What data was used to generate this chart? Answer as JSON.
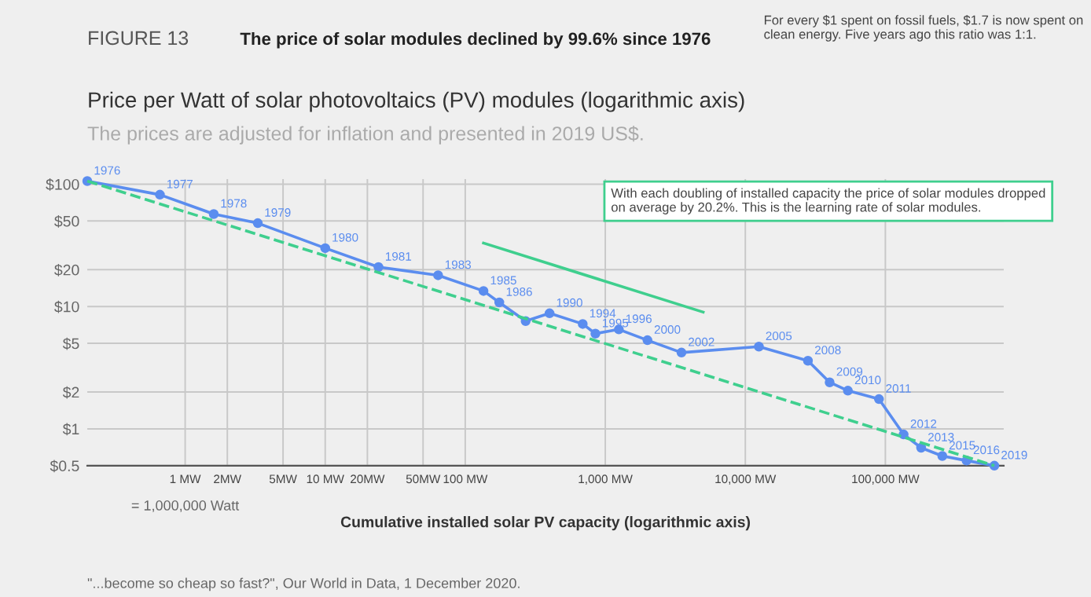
{
  "chart_data": {
    "type": "line",
    "title": "Price per Watt of solar photovoltaics (PV) modules (logarithmic axis)",
    "subtitle": "The prices are adjusted for inflation and presented in 2019 US$.",
    "xlabel": "Cumulative installed solar PV capacity (logarithmic axis)",
    "annotations": [
      "FIGURE 13",
      "The price of solar modules declined by 99.6% since 1976",
      "For every $1 spent on fossil fuels, $1.7 is now spent on clean energy. Five years ago this ratio was 1:1.",
      "With each doubling of installed capacity the price of solar modules dropped on average by 20.2%. This is the learning rate of solar modules.",
      "= 1,000,000 Watt",
      "\"...become so cheap so fast?\", Our World in Data, 1 December 2020.",
      {
        "text": "1976",
        "x": 0.2,
        "y": 106
      },
      {
        "text": "1977",
        "x": 0.66,
        "y": 82
      },
      {
        "text": "1978",
        "x": 1.6,
        "y": 57
      },
      {
        "text": "1979",
        "x": 3.3,
        "y": 48
      },
      {
        "text": "1980",
        "x": 10,
        "y": 30
      },
      {
        "text": "1981",
        "x": 24,
        "y": 21
      },
      {
        "text": "1983",
        "x": 64,
        "y": 18
      },
      {
        "text": "1985",
        "x": 135,
        "y": 13.4
      },
      {
        "text": "1986",
        "x": 175,
        "y": 10.8
      },
      {
        "text": "1990",
        "x": 400,
        "y": 8.8
      },
      {
        "text": "1994",
        "x": 690,
        "y": 7.2
      },
      {
        "text": "1995",
        "x": 850,
        "y": 6
      },
      {
        "text": "1996",
        "x": 1250,
        "y": 6.5
      },
      {
        "text": "2000",
        "x": 2000,
        "y": 5.3
      },
      {
        "text": "2002",
        "x": 3500,
        "y": 4.2
      },
      {
        "text": "2005",
        "x": 12500,
        "y": 4.7
      },
      {
        "text": "2008",
        "x": 28000,
        "y": 3.6
      },
      {
        "text": "2009",
        "x": 40000,
        "y": 2.4
      },
      {
        "text": "2010",
        "x": 54000,
        "y": 2.05
      },
      {
        "text": "2011",
        "x": 90000,
        "y": 1.75
      },
      {
        "text": "2012",
        "x": 135000,
        "y": 0.9
      },
      {
        "text": "2013",
        "x": 180000,
        "y": 0.7
      },
      {
        "text": "2015",
        "x": 255000,
        "y": 0.6
      },
      {
        "text": "2016",
        "x": 380000,
        "y": 0.55
      },
      {
        "text": "2019",
        "x": 600000,
        "y": 0.5
      }
    ],
    "log": "xy",
    "xlim": [
      0.2,
      700000
    ],
    "ylim": [
      0.5,
      110
    ],
    "xticks": [
      {
        "value": 1,
        "label": "1 MW"
      },
      {
        "value": 2,
        "label": "2MW"
      },
      {
        "value": 5,
        "label": "5MW"
      },
      {
        "value": 10,
        "label": "10 MW"
      },
      {
        "value": 20,
        "label": "20MW"
      },
      {
        "value": 50,
        "label": "50MW"
      },
      {
        "value": 100,
        "label": "100 MW"
      },
      {
        "value": 1000,
        "label": "1,000 MW"
      },
      {
        "value": 10000,
        "label": "10,000 MW"
      },
      {
        "value": 100000,
        "label": "100,000 MW"
      }
    ],
    "yticks": [
      {
        "value": 0.5,
        "label": "$0.5"
      },
      {
        "value": 1,
        "label": "$1"
      },
      {
        "value": 2,
        "label": "$2"
      },
      {
        "value": 5,
        "label": "$5"
      },
      {
        "value": 10,
        "label": "$10"
      },
      {
        "value": 20,
        "label": "$20"
      },
      {
        "value": 50,
        "label": "$50"
      },
      {
        "value": 100,
        "label": "$100"
      }
    ],
    "grid": true,
    "legend": false,
    "series": [
      {
        "color": "#5b8def",
        "marker": "circle",
        "line_style": "solid",
        "x": [
          0.2,
          0.66,
          1.6,
          3.3,
          10,
          24,
          64,
          135,
          175,
          270,
          400,
          690,
          850,
          1250,
          2000,
          3500,
          12500,
          28000,
          40000,
          54000,
          90000,
          135000,
          180000,
          255000,
          380000,
          600000
        ],
        "values": [
          106,
          82,
          57,
          48,
          30,
          21,
          18,
          13.4,
          10.8,
          7.6,
          8.8,
          7.2,
          6,
          6.5,
          5.3,
          4.2,
          4.7,
          3.6,
          2.4,
          2.05,
          1.75,
          0.9,
          0.7,
          0.6,
          0.55,
          0.5
        ]
      },
      {
        "color": "#3fcf8e",
        "marker": "none",
        "line_style": "dashed",
        "x": [
          0.2,
          600000
        ],
        "values": [
          106,
          0.5
        ]
      },
      {
        "color": "#3fcf8e",
        "marker": "none",
        "line_style": "solid",
        "x": [
          135,
          5000
        ],
        "values": [
          33,
          9
        ]
      }
    ]
  }
}
